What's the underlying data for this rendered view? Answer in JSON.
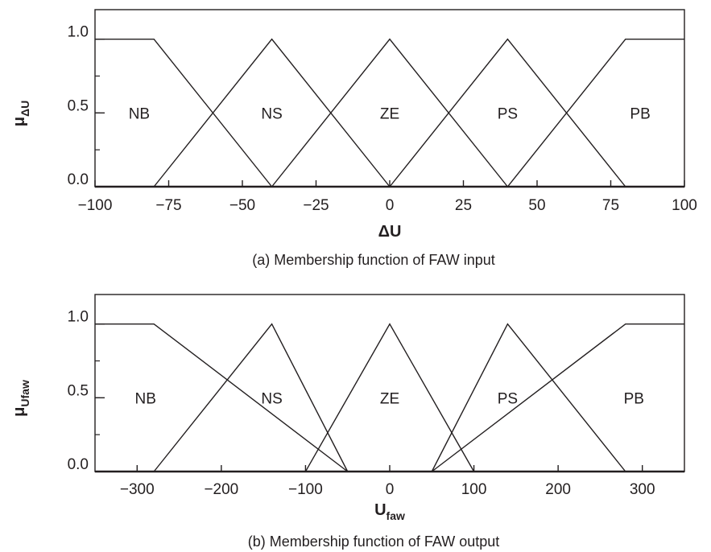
{
  "chart_data": [
    {
      "type": "line",
      "caption": "(a)  Membership function of FAW input",
      "xlabel": {
        "main": "ΔU",
        "sub": ""
      },
      "ylabel": {
        "main": "μ",
        "sub": "ΔU"
      },
      "xlim": [
        -100,
        100
      ],
      "ylim": [
        0,
        1.2
      ],
      "xticks": [
        -100,
        -75,
        -50,
        -25,
        0,
        25,
        50,
        75,
        100
      ],
      "xtick_labels": [
        "−100",
        "−75",
        "−50",
        "−25",
        "0",
        "25",
        "50",
        "75",
        "100"
      ],
      "yticks": [
        0,
        0.5,
        1.0
      ],
      "ytick_labels": [
        "0.0",
        "0.5",
        "1.0"
      ],
      "minor_y_step": 0.25,
      "series": [
        {
          "name": "NB",
          "x": [
            -100,
            -80,
            -40
          ],
          "y": [
            1,
            1,
            0
          ]
        },
        {
          "name": "NS",
          "x": [
            -80,
            -40,
            0
          ],
          "y": [
            0,
            1,
            0
          ]
        },
        {
          "name": "ZE",
          "x": [
            -40,
            0,
            40
          ],
          "y": [
            0,
            1,
            0
          ]
        },
        {
          "name": "PS",
          "x": [
            0,
            40,
            80
          ],
          "y": [
            0,
            1,
            0
          ]
        },
        {
          "name": "PB",
          "x": [
            40,
            80,
            100
          ],
          "y": [
            0,
            1,
            1
          ]
        }
      ],
      "annotations": [
        {
          "text": "NB",
          "x": -85,
          "y": 0.5
        },
        {
          "text": "NS",
          "x": -40,
          "y": 0.5
        },
        {
          "text": "ZE",
          "x": 0,
          "y": 0.5
        },
        {
          "text": "PS",
          "x": 40,
          "y": 0.5
        },
        {
          "text": "PB",
          "x": 85,
          "y": 0.5
        }
      ],
      "grid": false,
      "legend": false
    },
    {
      "type": "line",
      "caption": "(b)  Membership function of FAW output",
      "xlabel": {
        "main": "U",
        "sub": "faw"
      },
      "ylabel": {
        "main": "μ",
        "sub": "Ufaw"
      },
      "xlim": [
        -350,
        350
      ],
      "ylim": [
        0,
        1.2
      ],
      "xticks": [
        -300,
        -200,
        -100,
        0,
        100,
        200,
        300
      ],
      "xtick_labels": [
        "−300",
        "−200",
        "−100",
        "0",
        "100",
        "200",
        "300"
      ],
      "yticks": [
        0,
        0.5,
        1.0
      ],
      "ytick_labels": [
        "0.0",
        "0.5",
        "1.0"
      ],
      "minor_y_step": 0.25,
      "series": [
        {
          "name": "NB",
          "x": [
            -350,
            -280,
            -50
          ],
          "y": [
            1,
            1,
            0
          ]
        },
        {
          "name": "NS",
          "x": [
            -280,
            -140,
            -50
          ],
          "y": [
            0,
            1,
            0
          ]
        },
        {
          "name": "ZE",
          "x": [
            -100,
            0,
            100
          ],
          "y": [
            0,
            1,
            0
          ]
        },
        {
          "name": "PS",
          "x": [
            50,
            140,
            280
          ],
          "y": [
            0,
            1,
            0
          ]
        },
        {
          "name": "PB",
          "x": [
            50,
            280,
            350
          ],
          "y": [
            0,
            1,
            1
          ]
        }
      ],
      "annotations": [
        {
          "text": "NB",
          "x": -290,
          "y": 0.5
        },
        {
          "text": "NS",
          "x": -140,
          "y": 0.5
        },
        {
          "text": "ZE",
          "x": 0,
          "y": 0.5
        },
        {
          "text": "PS",
          "x": 140,
          "y": 0.5
        },
        {
          "text": "PB",
          "x": 290,
          "y": 0.5
        }
      ],
      "grid": false,
      "legend": false
    }
  ]
}
